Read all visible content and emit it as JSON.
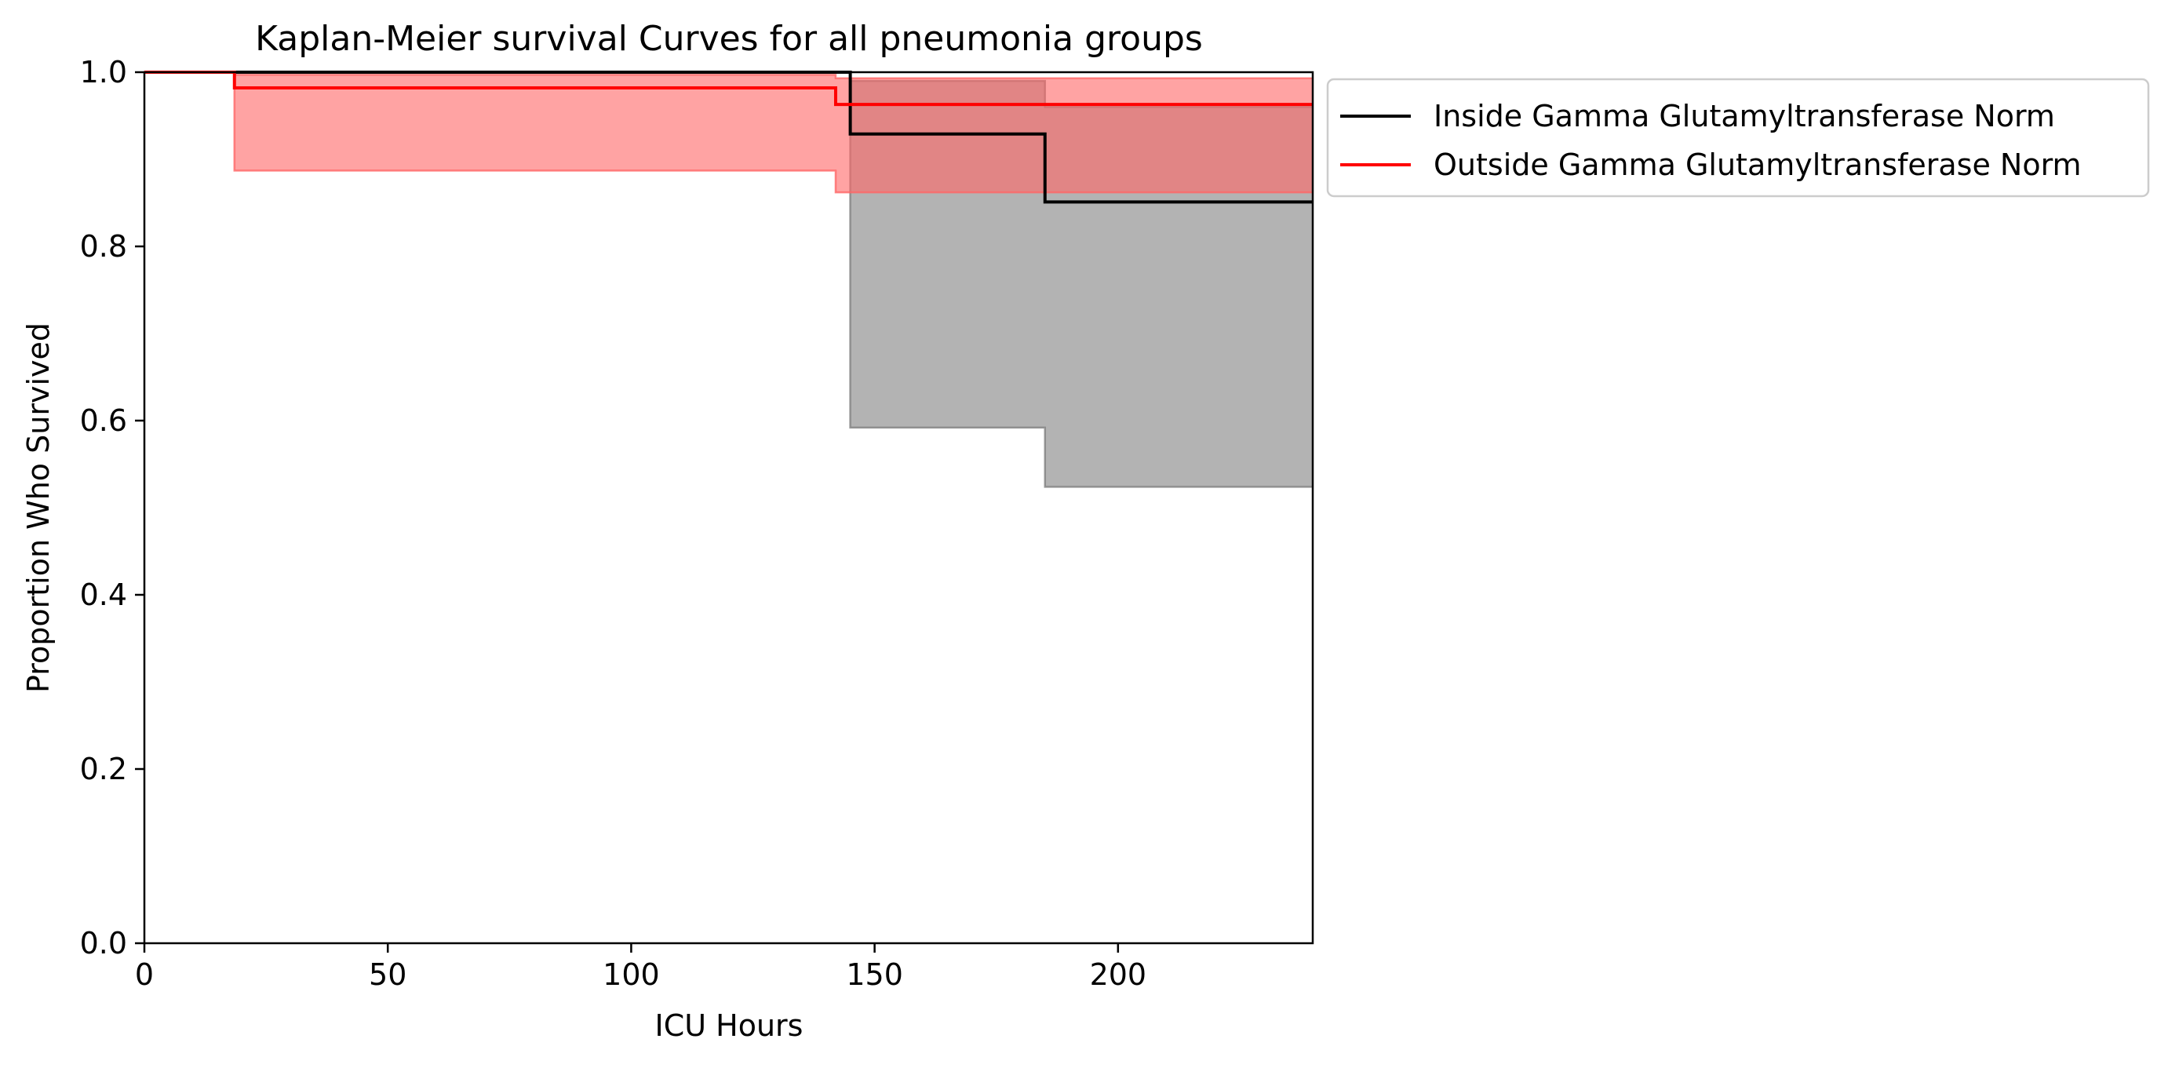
{
  "chart_data": {
    "type": "line",
    "subtype": "kaplan-meier step curves with confidence bands",
    "title": "Kaplan-Meier survival Curves for all pneumonia groups",
    "xlabel": "ICU Hours",
    "ylabel": "Proportion Who Survived",
    "xlim": [
      0,
      240
    ],
    "ylim": [
      0.0,
      1.0
    ],
    "x_ticks": [
      0,
      50,
      100,
      150,
      200
    ],
    "x_tick_labels": [
      "0",
      "50",
      "100",
      "150",
      "200"
    ],
    "y_ticks": [
      0.0,
      0.2,
      0.4,
      0.6,
      0.8,
      1.0
    ],
    "y_tick_labels": [
      "0.0",
      "0.2",
      "0.4",
      "0.6",
      "0.8",
      "1.0"
    ],
    "grid": false,
    "legend_position": "outside-upper-right",
    "series": [
      {
        "name": "Inside Gamma Glutamyltransferase Norm",
        "color": "#000000",
        "band_color": "#808080",
        "steps": [
          {
            "x": 0,
            "y": 1.0
          },
          {
            "x": 145,
            "y": 0.929
          },
          {
            "x": 185,
            "y": 0.851
          },
          {
            "x": 240,
            "y": 0.851
          }
        ],
        "ci_lower": [
          {
            "x": 0,
            "y": 1.0
          },
          {
            "x": 145,
            "y": 0.592
          },
          {
            "x": 185,
            "y": 0.524
          },
          {
            "x": 240,
            "y": 0.524
          }
        ],
        "ci_upper": [
          {
            "x": 0,
            "y": 1.0
          },
          {
            "x": 145,
            "y": 0.99
          },
          {
            "x": 185,
            "y": 0.96
          },
          {
            "x": 240,
            "y": 0.96
          }
        ]
      },
      {
        "name": "Outside Gamma Glutamyltransferase Norm",
        "color": "#ff0000",
        "band_color": "#ff6666",
        "steps": [
          {
            "x": 0,
            "y": 1.0
          },
          {
            "x": 18.5,
            "y": 0.982
          },
          {
            "x": 142,
            "y": 0.963
          },
          {
            "x": 240,
            "y": 0.963
          }
        ],
        "ci_lower": [
          {
            "x": 0,
            "y": 1.0
          },
          {
            "x": 18.5,
            "y": 0.887
          },
          {
            "x": 142,
            "y": 0.862
          },
          {
            "x": 240,
            "y": 0.862
          }
        ],
        "ci_upper": [
          {
            "x": 0,
            "y": 1.0
          },
          {
            "x": 18.5,
            "y": 0.997
          },
          {
            "x": 142,
            "y": 0.993
          },
          {
            "x": 240,
            "y": 0.993
          }
        ]
      }
    ]
  }
}
